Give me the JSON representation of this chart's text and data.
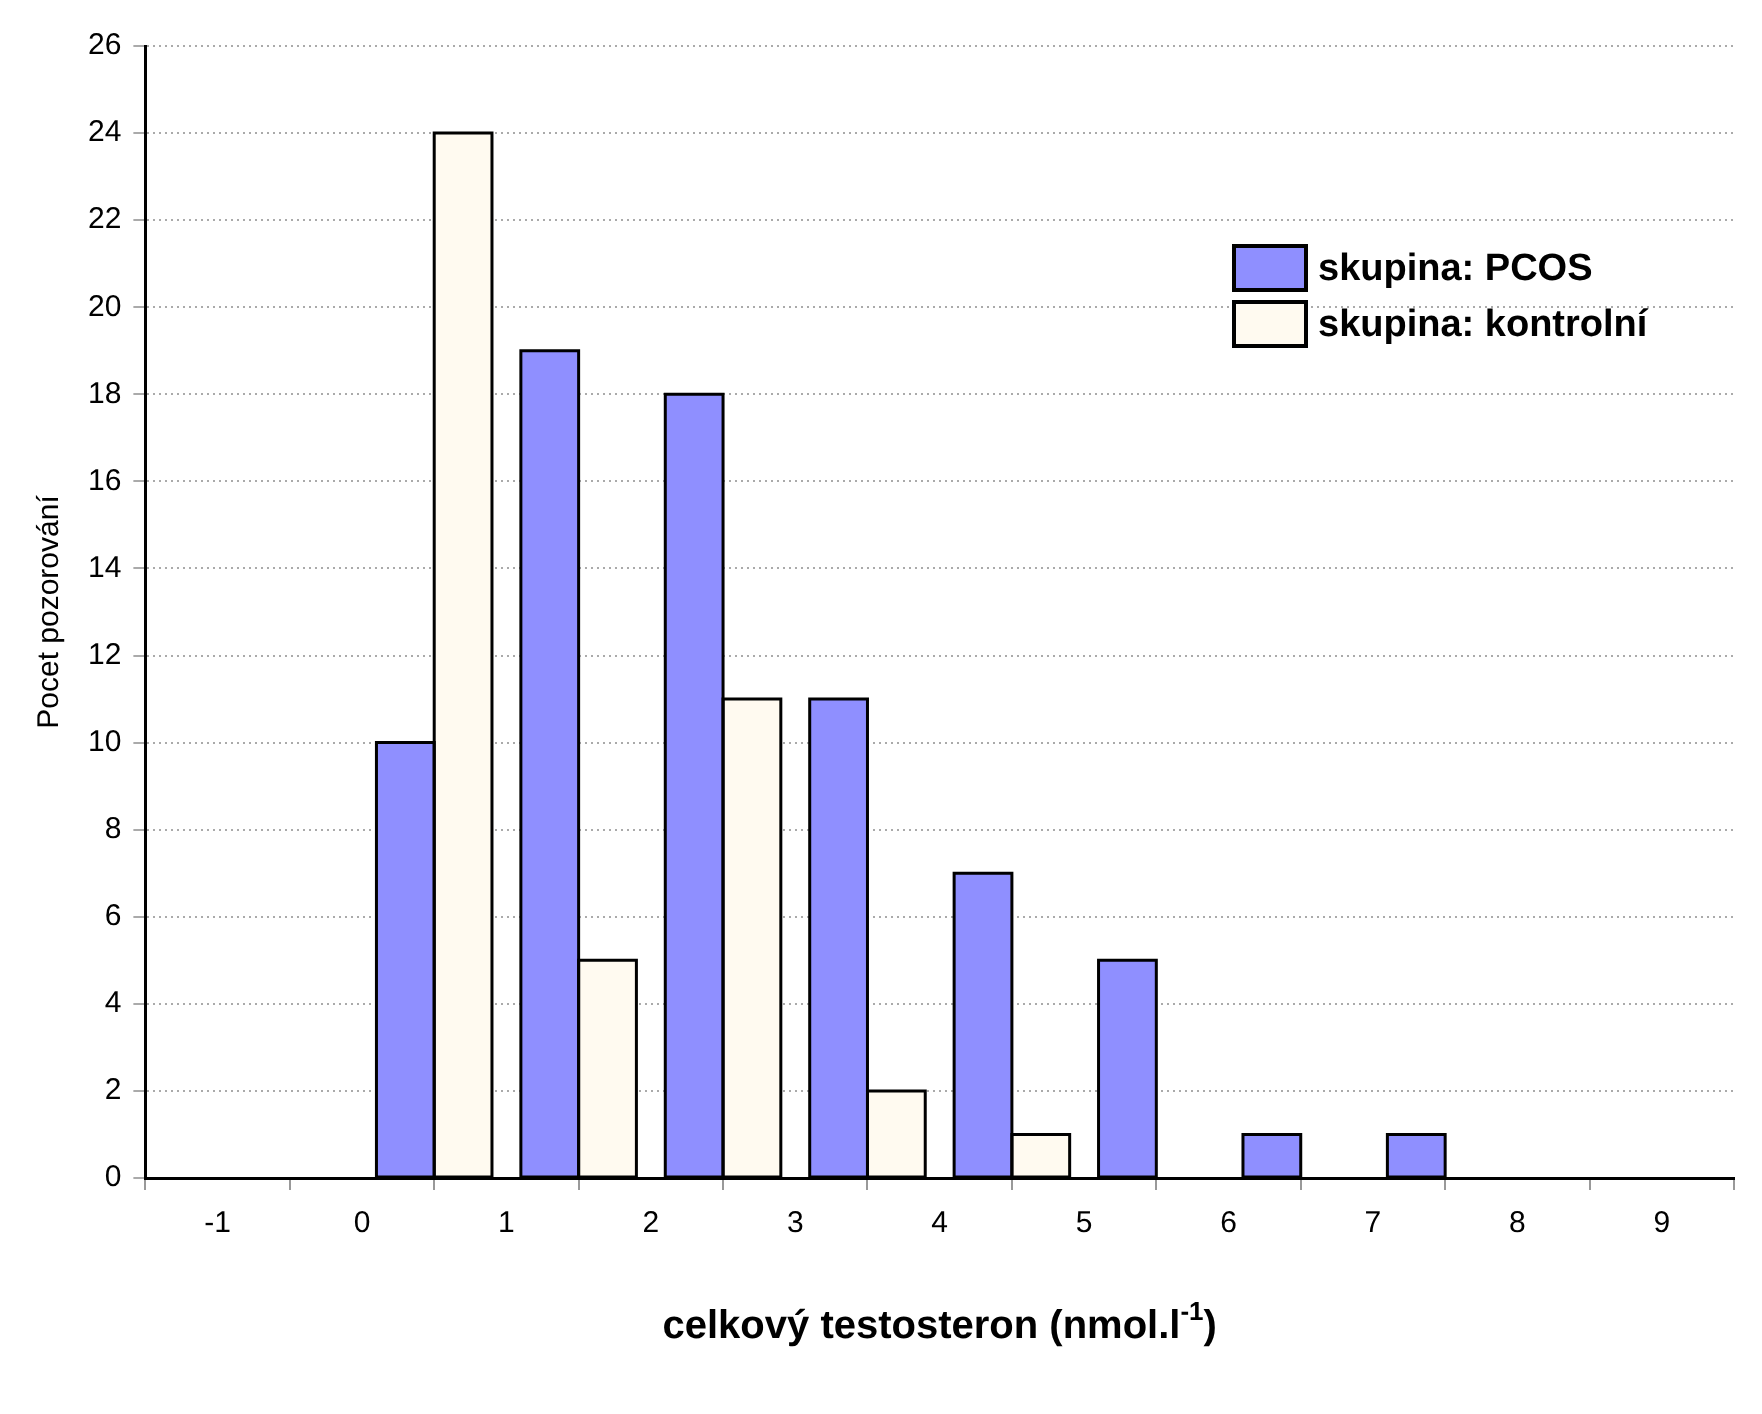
{
  "chart_data": {
    "type": "histogram",
    "xlabel": "celkový testosteron (nmol.l$^{-1}$)",
    "ylabel": "Pocet pozorování",
    "bins": [
      0,
      1,
      2,
      3,
      4,
      5,
      6,
      7,
      8
    ],
    "series": [
      {
        "name": "skupina: PCOS",
        "color": "#8f8fff",
        "values": [
          10,
          19,
          18,
          11,
          7,
          5,
          1,
          1
        ]
      },
      {
        "name": "skupina: kontrolní",
        "color": "#fffaf0",
        "values": [
          24,
          5,
          11,
          2,
          1,
          0,
          0,
          0
        ]
      }
    ],
    "xlim": [
      -1.5,
      9.5
    ],
    "xticks": [
      -1,
      0,
      1,
      2,
      3,
      4,
      5,
      6,
      7,
      8,
      9
    ],
    "ylim": [
      0,
      26
    ],
    "yticks": [
      0,
      2,
      4,
      6,
      8,
      10,
      12,
      14,
      16,
      18,
      20,
      22,
      24,
      26
    ],
    "grid": "y",
    "legend": "top right"
  }
}
